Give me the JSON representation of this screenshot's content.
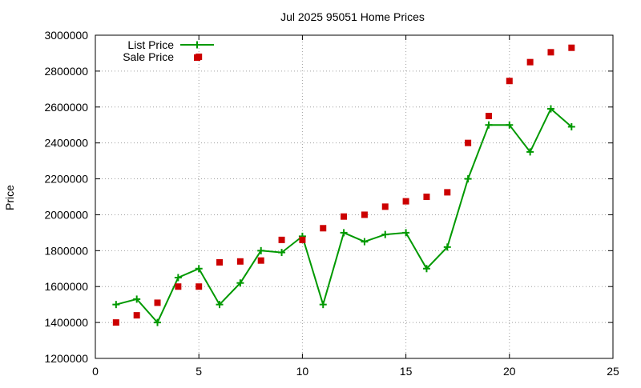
{
  "chart_data": {
    "type": "line",
    "title": "Jul 2025 95051 Home Prices",
    "xlabel": "",
    "ylabel": "Price",
    "xlim": [
      0,
      25
    ],
    "ylim": [
      1200000,
      3000000
    ],
    "x_ticks": [
      0,
      5,
      10,
      15,
      20,
      25
    ],
    "y_ticks": [
      1200000,
      1400000,
      1600000,
      1800000,
      2000000,
      2200000,
      2400000,
      2600000,
      2800000,
      3000000
    ],
    "grid": true,
    "legend_position": "top-left",
    "series": [
      {
        "name": "List Price",
        "style": "line-points",
        "color": "#009900",
        "x": [
          1,
          2,
          3,
          4,
          5,
          6,
          7,
          8,
          9,
          10,
          11,
          12,
          13,
          14,
          15,
          16,
          17,
          18,
          19,
          20,
          21,
          22,
          23
        ],
        "values": [
          1500000,
          1530000,
          1400000,
          1650000,
          1700000,
          1500000,
          1620000,
          1800000,
          1790000,
          1880000,
          1500000,
          1900000,
          1850000,
          1890000,
          1900000,
          1700000,
          1820000,
          2200000,
          2500000,
          2500000,
          2350000,
          2590000,
          2490000
        ]
      },
      {
        "name": "Sale Price",
        "style": "points",
        "color": "#cc0000",
        "x": [
          1,
          2,
          3,
          4,
          5,
          5,
          6,
          7,
          8,
          9,
          10,
          11,
          12,
          13,
          14,
          15,
          16,
          17,
          18,
          19,
          20,
          21,
          22,
          23
        ],
        "values": [
          1400000,
          1440000,
          1510000,
          1600000,
          1600000,
          2880000,
          1735000,
          1740000,
          1745000,
          1860000,
          1860000,
          1925000,
          1990000,
          2000000,
          2045000,
          2075000,
          2100000,
          2125000,
          2400000,
          2550000,
          2745000,
          2850000,
          2905000,
          2930000
        ]
      }
    ]
  }
}
